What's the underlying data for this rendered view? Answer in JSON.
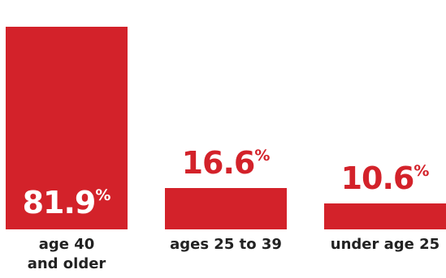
{
  "chart_data": {
    "type": "bar",
    "categories": [
      [
        "age 40",
        "and older"
      ],
      [
        "ages 25 to 39"
      ],
      [
        "under age 25"
      ]
    ],
    "values": [
      81.9,
      16.6,
      10.6
    ],
    "value_labels": [
      "81.9",
      "16.6",
      "10.6"
    ],
    "value_suffix": "%",
    "ylim": [
      0,
      90
    ],
    "title": "",
    "xlabel": "",
    "ylabel": "",
    "grid": false,
    "legend": "none"
  },
  "colors": {
    "bar": "#d3222a",
    "label": "#222222",
    "value_on_bar": "#ffffff",
    "value_above_bar": "#d3222a"
  }
}
